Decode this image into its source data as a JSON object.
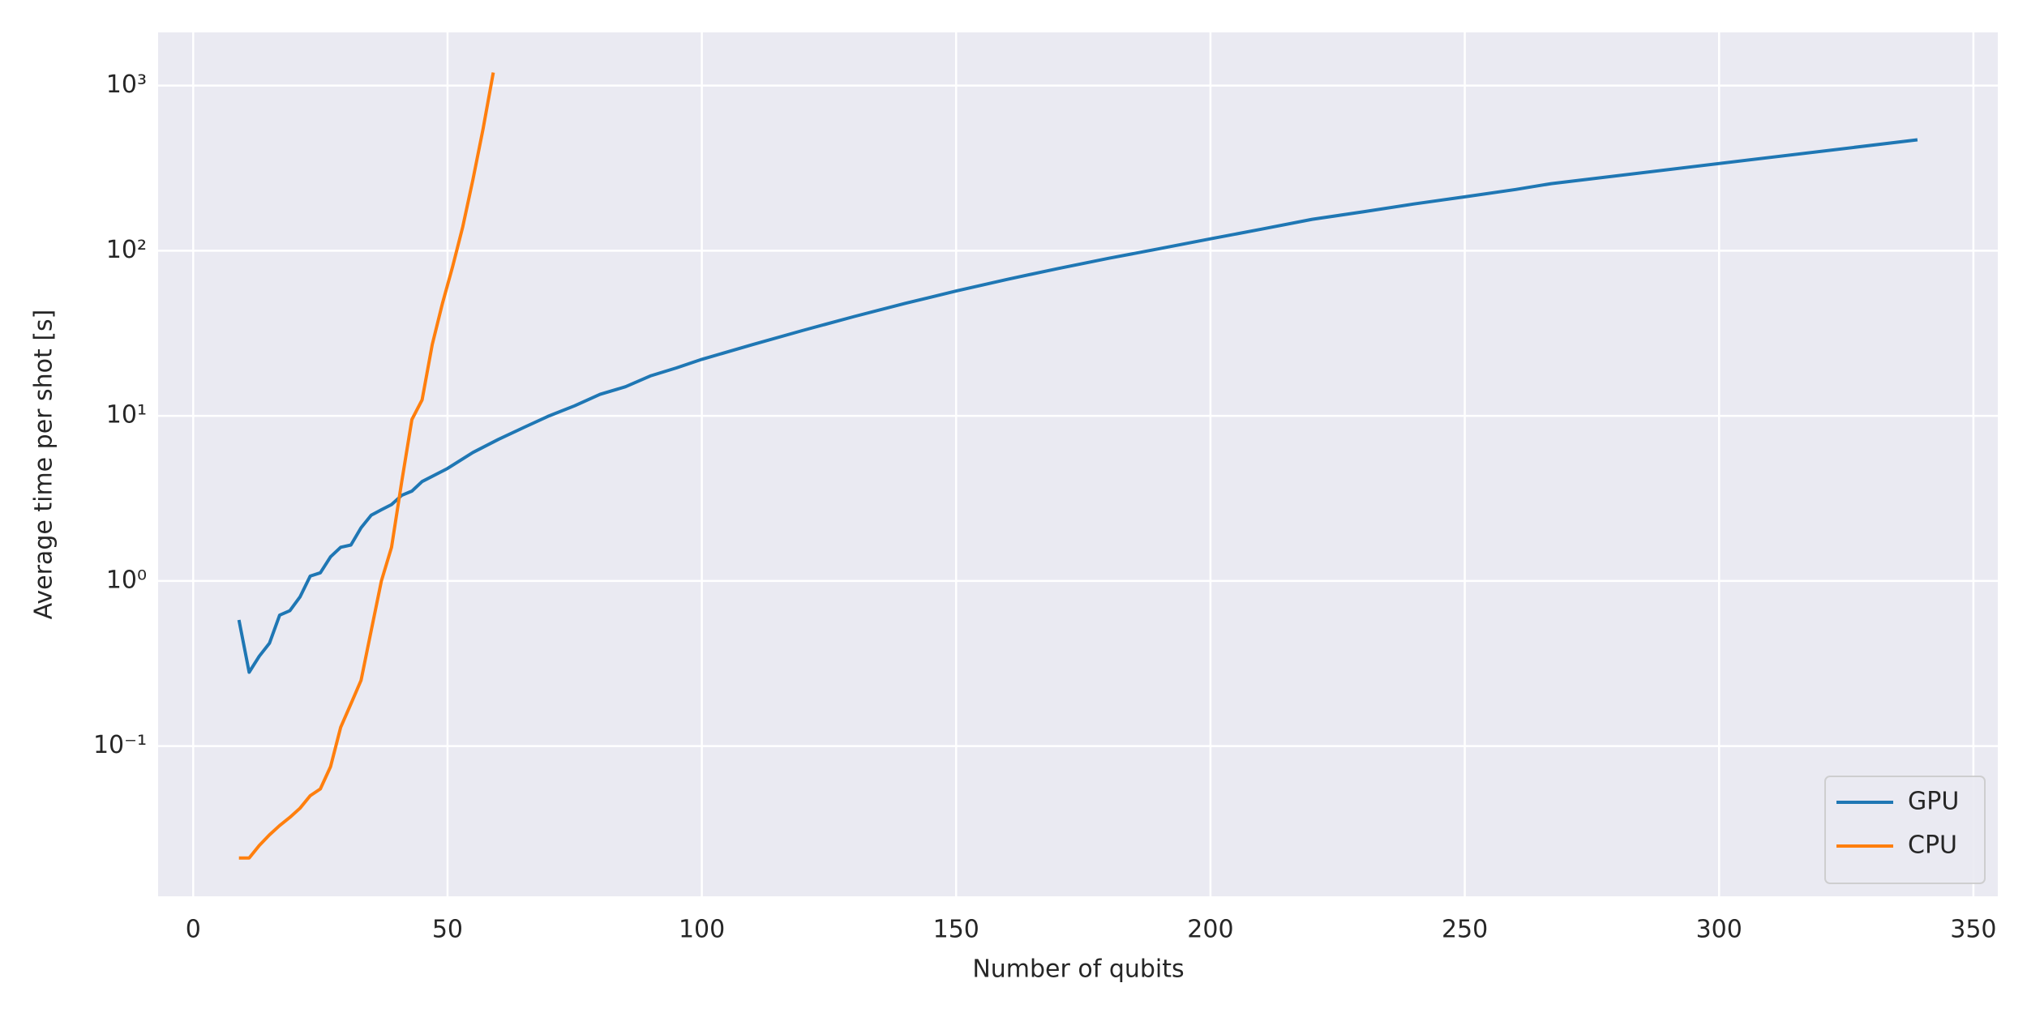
{
  "chart_data": {
    "type": "line",
    "xlabel": "Number of qubits",
    "ylabel": "Average time per shot [s]",
    "xlim": [
      -6.9,
      354.8
    ],
    "xticks": [
      0,
      50,
      100,
      150,
      200,
      250,
      300,
      350
    ],
    "ylim": [
      0.0123,
      2100
    ],
    "yscale": "log",
    "yticks": [
      {
        "value": 0.1,
        "label": "10⁻¹"
      },
      {
        "value": 1,
        "label": "10⁰"
      },
      {
        "value": 10,
        "label": "10¹"
      },
      {
        "value": 100,
        "label": "10²"
      },
      {
        "value": 1000,
        "label": "10³"
      }
    ],
    "grid": true,
    "legend": "lower right",
    "series": [
      {
        "name": "GPU",
        "color": "#1f77b4",
        "x": [
          9,
          11,
          13,
          15,
          17,
          19,
          21,
          23,
          25,
          27,
          29,
          31,
          33,
          35,
          37,
          39,
          41,
          43,
          45,
          50,
          55,
          60,
          65,
          70,
          75,
          80,
          85,
          90,
          95,
          100,
          110,
          120,
          130,
          140,
          150,
          160,
          170,
          180,
          190,
          200,
          210,
          220,
          230,
          240,
          250,
          260,
          267,
          339
        ],
        "values": [
          0.58,
          0.28,
          0.35,
          0.42,
          0.62,
          0.66,
          0.8,
          1.07,
          1.12,
          1.4,
          1.6,
          1.65,
          2.1,
          2.5,
          2.7,
          2.9,
          3.3,
          3.5,
          4.0,
          4.8,
          6.0,
          7.2,
          8.5,
          10,
          11.5,
          13.5,
          15,
          17.5,
          19.5,
          22,
          27,
          33,
          40,
          48,
          57,
          67,
          78,
          90,
          103,
          118,
          135,
          155,
          172,
          192,
          212,
          235,
          255,
          470
        ]
      },
      {
        "name": "CPU",
        "color": "#ff7f0e",
        "x": [
          9,
          11,
          13,
          15,
          17,
          19,
          21,
          23,
          25,
          27,
          29,
          31,
          33,
          35,
          37,
          39,
          41,
          43,
          45,
          47,
          49,
          51,
          53,
          55,
          57,
          59
        ],
        "values": [
          0.021,
          0.021,
          0.025,
          0.029,
          0.033,
          0.037,
          0.042,
          0.05,
          0.055,
          0.075,
          0.13,
          0.18,
          0.25,
          0.5,
          1.0,
          1.6,
          4.0,
          9.5,
          12.5,
          27,
          48,
          80,
          140,
          270,
          550,
          1200
        ]
      }
    ]
  }
}
